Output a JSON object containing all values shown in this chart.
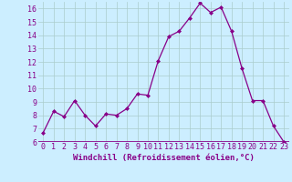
{
  "x": [
    0,
    1,
    2,
    3,
    4,
    5,
    6,
    7,
    8,
    9,
    10,
    11,
    12,
    13,
    14,
    15,
    16,
    17,
    18,
    19,
    20,
    21,
    22,
    23
  ],
  "y": [
    6.7,
    8.3,
    7.9,
    9.1,
    8.0,
    7.2,
    8.1,
    8.0,
    8.5,
    9.6,
    9.5,
    12.1,
    13.9,
    14.3,
    15.3,
    16.4,
    15.7,
    16.1,
    14.3,
    11.5,
    9.1,
    9.1,
    7.2,
    6.0
  ],
  "line_color": "#880088",
  "marker": "D",
  "marker_size": 2,
  "linewidth": 0.9,
  "xlabel": "Windchill (Refroidissement éolien,°C)",
  "ylim": [
    6,
    16.5
  ],
  "xlim": [
    -0.5,
    23.5
  ],
  "yticks": [
    6,
    7,
    8,
    9,
    10,
    11,
    12,
    13,
    14,
    15,
    16
  ],
  "xticks": [
    0,
    1,
    2,
    3,
    4,
    5,
    6,
    7,
    8,
    9,
    10,
    11,
    12,
    13,
    14,
    15,
    16,
    17,
    18,
    19,
    20,
    21,
    22,
    23
  ],
  "bg_color": "#cceeff",
  "grid_color": "#aacccc",
  "tick_label_color": "#880088",
  "axis_label_color": "#880088",
  "xlabel_fontsize": 6.5,
  "tick_fontsize": 6.0,
  "bottom_bar_color": "#880088"
}
